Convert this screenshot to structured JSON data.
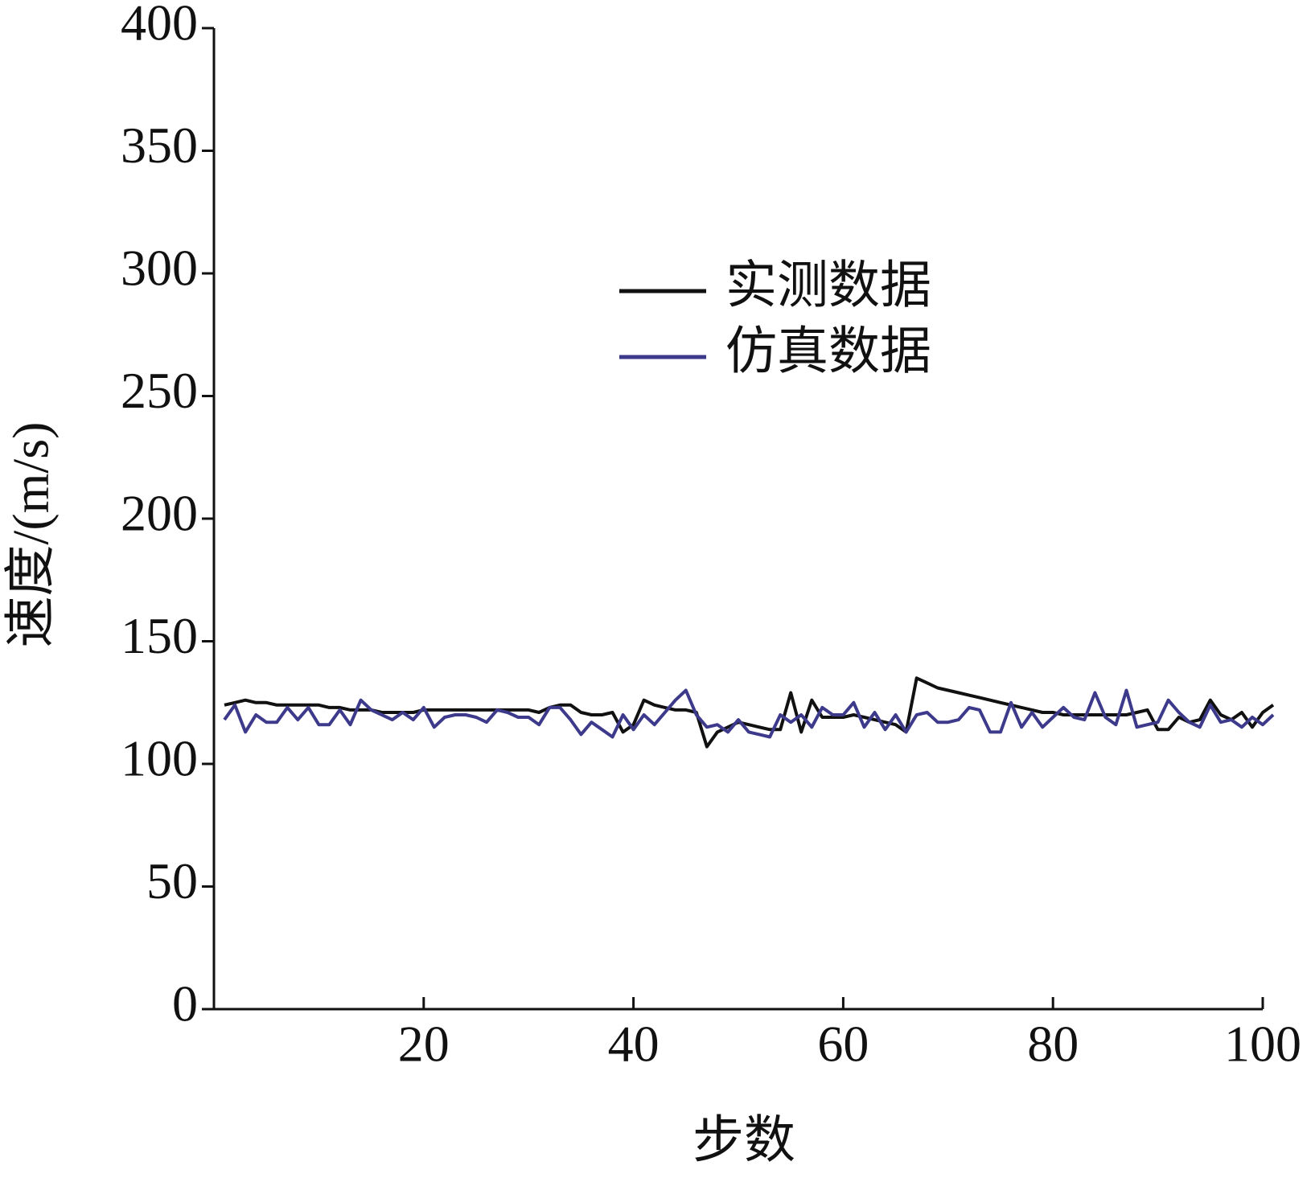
{
  "chart_data": {
    "type": "line",
    "x_label": "步数",
    "y_label": "速度/(m/s)",
    "x": [
      1,
      2,
      3,
      4,
      5,
      6,
      7,
      8,
      9,
      10,
      11,
      12,
      13,
      14,
      15,
      16,
      17,
      18,
      19,
      20,
      21,
      22,
      23,
      24,
      25,
      26,
      27,
      28,
      29,
      30,
      31,
      32,
      33,
      34,
      35,
      36,
      37,
      38,
      39,
      40,
      41,
      42,
      43,
      44,
      45,
      46,
      47,
      48,
      49,
      50,
      51,
      52,
      53,
      54,
      55,
      56,
      57,
      58,
      59,
      60,
      61,
      62,
      63,
      64,
      65,
      66,
      67,
      68,
      69,
      70,
      71,
      72,
      73,
      74,
      75,
      76,
      77,
      78,
      79,
      80,
      81,
      82,
      83,
      84,
      85,
      86,
      87,
      88,
      89,
      90,
      91,
      92,
      93,
      94,
      95,
      96,
      97,
      98,
      99,
      100,
      101
    ],
    "series": [
      {
        "name": "实测数据",
        "color": "#111111",
        "values": [
          124,
          125,
          126,
          125,
          125,
          124,
          124,
          124,
          124,
          124,
          123,
          123,
          122,
          122,
          122,
          121,
          121,
          121,
          121,
          122,
          122,
          122,
          122,
          122,
          122,
          122,
          122,
          122,
          122,
          122,
          121,
          123,
          124,
          124,
          121,
          120,
          120,
          121,
          113,
          116,
          126,
          124,
          123,
          122,
          122,
          121,
          107,
          113,
          115,
          117,
          116,
          115,
          114,
          114,
          129,
          113,
          126,
          119,
          119,
          119,
          120,
          119,
          118,
          117,
          116,
          113,
          135,
          133,
          131,
          130,
          129,
          128,
          127,
          126,
          125,
          124,
          123,
          122,
          121,
          121,
          120,
          120,
          120,
          120,
          120,
          120,
          120,
          121,
          122,
          114,
          114,
          119,
          117,
          118,
          126,
          120,
          118,
          121,
          115,
          121,
          124
        ]
      },
      {
        "name": "仿真数据",
        "color": "#3d3a8c",
        "values": [
          118,
          124,
          113,
          120,
          117,
          117,
          123,
          118,
          123,
          116,
          116,
          122,
          116,
          126,
          122,
          120,
          118,
          121,
          118,
          123,
          115,
          119,
          120,
          120,
          119,
          117,
          122,
          121,
          119,
          119,
          116,
          123,
          123,
          118,
          112,
          117,
          114,
          111,
          120,
          114,
          120,
          116,
          121,
          126,
          130,
          120,
          115,
          116,
          113,
          118,
          113,
          112,
          111,
          120,
          117,
          120,
          115,
          123,
          120,
          120,
          125,
          115,
          121,
          114,
          120,
          113,
          120,
          121,
          117,
          117,
          118,
          123,
          122,
          113,
          113,
          125,
          115,
          121,
          115,
          119,
          123,
          119,
          118,
          129,
          119,
          116,
          130,
          115,
          116,
          117,
          126,
          121,
          117,
          115,
          124,
          117,
          118,
          115,
          119,
          116,
          120
        ]
      }
    ],
    "xlim": [
      0,
      100
    ],
    "xticks": [
      20,
      40,
      60,
      80,
      100
    ],
    "ylim": [
      0,
      400
    ],
    "yticks": [
      0,
      50,
      100,
      150,
      200,
      250,
      300,
      350,
      400
    ],
    "legend": "center",
    "grid": false
  }
}
